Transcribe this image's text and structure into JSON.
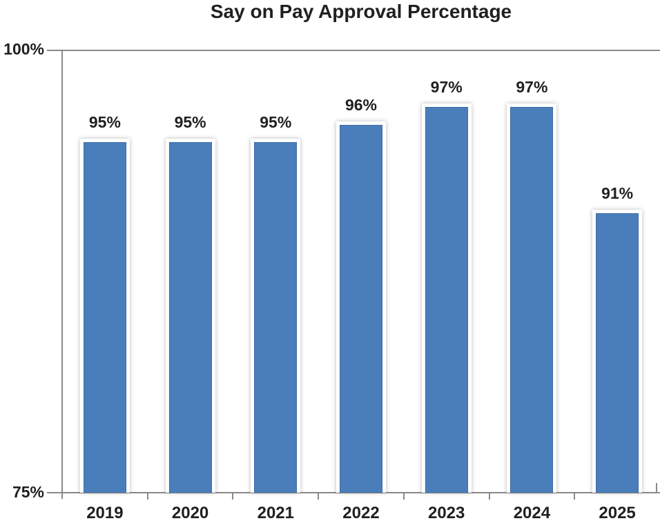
{
  "chart_data": {
    "type": "bar",
    "title": "Say on Pay Approval Percentage",
    "categories": [
      "2019",
      "2020",
      "2021",
      "2022",
      "2023",
      "2024",
      "2025"
    ],
    "values": [
      95,
      95,
      95,
      96,
      97,
      97,
      91
    ],
    "value_labels": [
      "95%",
      "95%",
      "95%",
      "96%",
      "97%",
      "97%",
      "91%"
    ],
    "ylim": [
      75,
      100
    ],
    "yticks": {
      "top": "100%",
      "bottom": "75%"
    },
    "legend": "none",
    "grid": "top-border-only",
    "bar_color": "#4a7ebb",
    "bar_edge_color": "#3c6ba6",
    "bar_border_color": "#ffffff",
    "axis_color": "#898989",
    "text_color": "#202020"
  }
}
